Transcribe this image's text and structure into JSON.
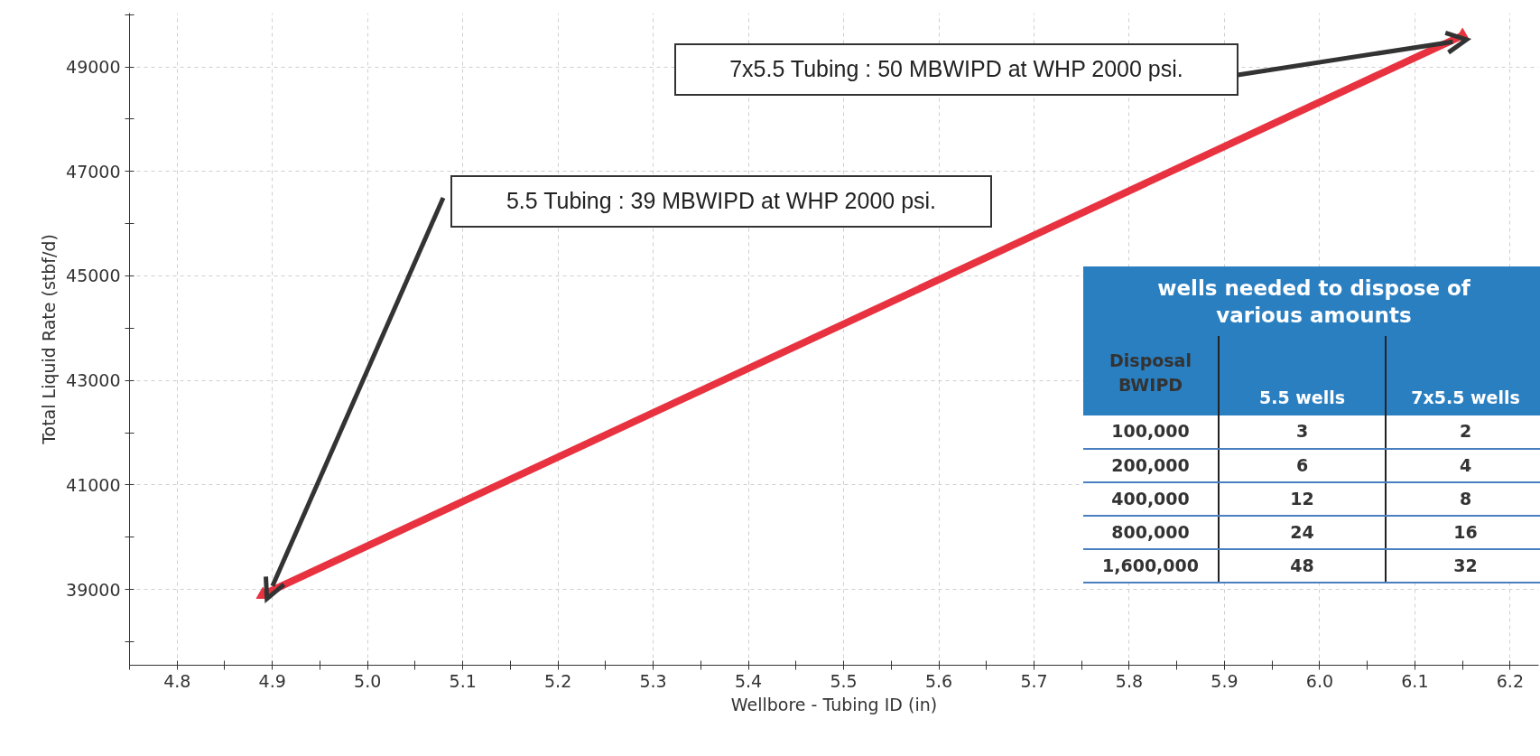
{
  "chart_data": {
    "type": "line",
    "xlabel": "Wellbore - Tubing ID (in)",
    "ylabel": "Total Liquid Rate (stbf/d)",
    "x": [
      4.89,
      6.15
    ],
    "series": [
      {
        "color": "#e8323f",
        "values": [
          38900,
          49600
        ]
      }
    ],
    "marker": "triangle",
    "line_style": "solid",
    "grid": true,
    "xlim": [
      4.75,
      6.23
    ],
    "ylim": [
      37550,
      50030
    ],
    "xticks": [
      {
        "value": 4.75,
        "label": null
      },
      4.8,
      {
        "value": 4.85,
        "label": null
      },
      4.9,
      {
        "value": 4.95,
        "label": null
      },
      {
        "value": 5.0,
        "label": "5.0"
      },
      {
        "value": 5.05,
        "label": null
      },
      5.1,
      {
        "value": 5.15,
        "label": null
      },
      5.2,
      {
        "value": 5.25,
        "label": null
      },
      5.3,
      {
        "value": 5.35,
        "label": null
      },
      5.4,
      {
        "value": 5.45,
        "label": null
      },
      5.5,
      {
        "value": 5.55,
        "label": null
      },
      5.6,
      {
        "value": 5.65,
        "label": null
      },
      5.7,
      {
        "value": 5.75,
        "label": null
      },
      5.8,
      {
        "value": 5.85,
        "label": null
      },
      5.9,
      {
        "value": 5.95,
        "label": null
      },
      {
        "value": 6.0,
        "label": "6.0"
      },
      {
        "value": 6.05,
        "label": null
      },
      6.1,
      {
        "value": 6.15,
        "label": null
      },
      6.2
    ],
    "yticks": [
      {
        "value": 38000,
        "label": null
      },
      39000,
      {
        "value": 40000,
        "label": null
      },
      41000,
      {
        "value": 42000,
        "label": null
      },
      43000,
      {
        "value": 44000,
        "label": null
      },
      45000,
      {
        "value": 46000,
        "label": null
      },
      47000,
      {
        "value": 48000,
        "label": null
      },
      49000,
      {
        "value": 50000,
        "label": null
      }
    ],
    "annotations": [
      "5.5 Tubing : 39 MBWIPD at WHP 2000 psi.",
      "7x5.5 Tubing : 50 MBWIPD at WHP 2000 psi.",
      "wells needed to dispose of various amounts",
      "Disposal BWIPD",
      "5.5 wells",
      "7x5.5 wells",
      "100,000",
      "3",
      "2",
      "200,000",
      "6",
      "4",
      "400,000",
      "12",
      "8",
      "800,000",
      "24",
      "16",
      "1,600,000",
      "48",
      "32"
    ]
  }
}
